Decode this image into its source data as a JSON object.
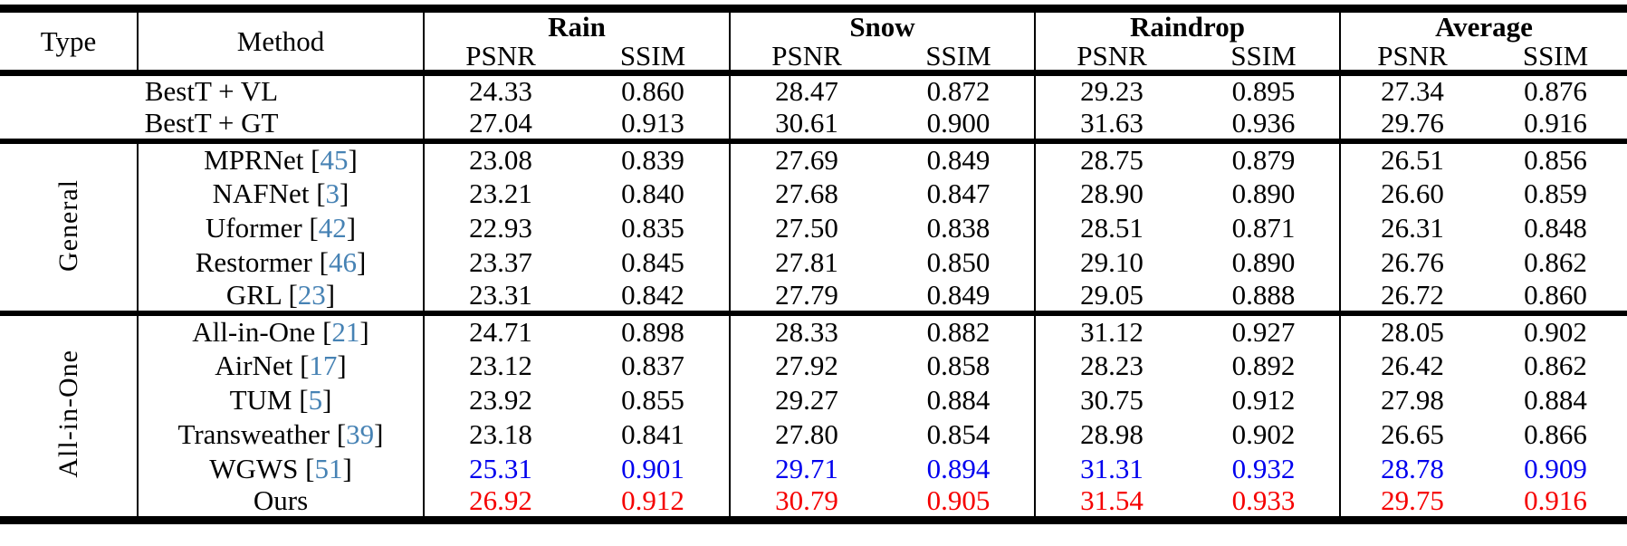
{
  "table": {
    "corner": {
      "type": "Type",
      "method": "Method"
    },
    "groups": [
      {
        "label": "Rain"
      },
      {
        "label": "Snow"
      },
      {
        "label": "Raindrop"
      },
      {
        "label": "Average"
      }
    ],
    "metrics": [
      "PSNR",
      "SSIM"
    ],
    "citation_brackets": {
      "open": "[",
      "close": "]"
    },
    "sections": [
      {
        "type_label": "",
        "rows": [
          {
            "method": "BestT + VL",
            "values": [
              "24.33",
              "0.860",
              "28.47",
              "0.872",
              "29.23",
              "0.895",
              "27.34",
              "0.876"
            ]
          },
          {
            "method": "BestT + GT",
            "values": [
              "27.04",
              "0.913",
              "30.61",
              "0.900",
              "31.63",
              "0.936",
              "29.76",
              "0.916"
            ]
          }
        ]
      },
      {
        "type_label": "General",
        "rows": [
          {
            "method": "MPRNet",
            "cite": "45",
            "values": [
              "23.08",
              "0.839",
              "27.69",
              "0.849",
              "28.75",
              "0.879",
              "26.51",
              "0.856"
            ]
          },
          {
            "method": "NAFNet",
            "cite": "3",
            "values": [
              "23.21",
              "0.840",
              "27.68",
              "0.847",
              "28.90",
              "0.890",
              "26.60",
              "0.859"
            ]
          },
          {
            "method": "Uformer",
            "cite": "42",
            "values": [
              "22.93",
              "0.835",
              "27.50",
              "0.838",
              "28.51",
              "0.871",
              "26.31",
              "0.848"
            ]
          },
          {
            "method": "Restormer",
            "cite": "46",
            "values": [
              "23.37",
              "0.845",
              "27.81",
              "0.850",
              "29.10",
              "0.890",
              "26.76",
              "0.862"
            ]
          },
          {
            "method": "GRL",
            "cite": "23",
            "values": [
              "23.31",
              "0.842",
              "27.79",
              "0.849",
              "29.05",
              "0.888",
              "26.72",
              "0.860"
            ]
          }
        ]
      },
      {
        "type_label": "All-in-One",
        "rows": [
          {
            "method": "All-in-One",
            "cite": "21",
            "values": [
              "24.71",
              "0.898",
              "28.33",
              "0.882",
              "31.12",
              "0.927",
              "28.05",
              "0.902"
            ]
          },
          {
            "method": "AirNet",
            "cite": "17",
            "values": [
              "23.12",
              "0.837",
              "27.92",
              "0.858",
              "28.23",
              "0.892",
              "26.42",
              "0.862"
            ]
          },
          {
            "method": "TUM",
            "cite": "5",
            "values": [
              "23.92",
              "0.855",
              "29.27",
              "0.884",
              "30.75",
              "0.912",
              "27.98",
              "0.884"
            ]
          },
          {
            "method": "Transweather",
            "cite": "39",
            "values": [
              "23.18",
              "0.841",
              "27.80",
              "0.854",
              "28.98",
              "0.902",
              "26.65",
              "0.866"
            ]
          },
          {
            "method": "WGWS",
            "cite": "51",
            "value_color": "blue",
            "values": [
              "25.31",
              "0.901",
              "29.71",
              "0.894",
              "31.31",
              "0.932",
              "28.78",
              "0.909"
            ]
          },
          {
            "method": "Ours",
            "value_color": "red",
            "values": [
              "26.92",
              "0.912",
              "30.79",
              "0.905",
              "31.54",
              "0.933",
              "29.75",
              "0.916"
            ]
          }
        ]
      }
    ]
  },
  "colors": {
    "citation": "#4682B4",
    "highlight_blue": "#0000EE",
    "highlight_red": "#F50000",
    "rule": "#000000",
    "background": "#FFFFFF"
  }
}
